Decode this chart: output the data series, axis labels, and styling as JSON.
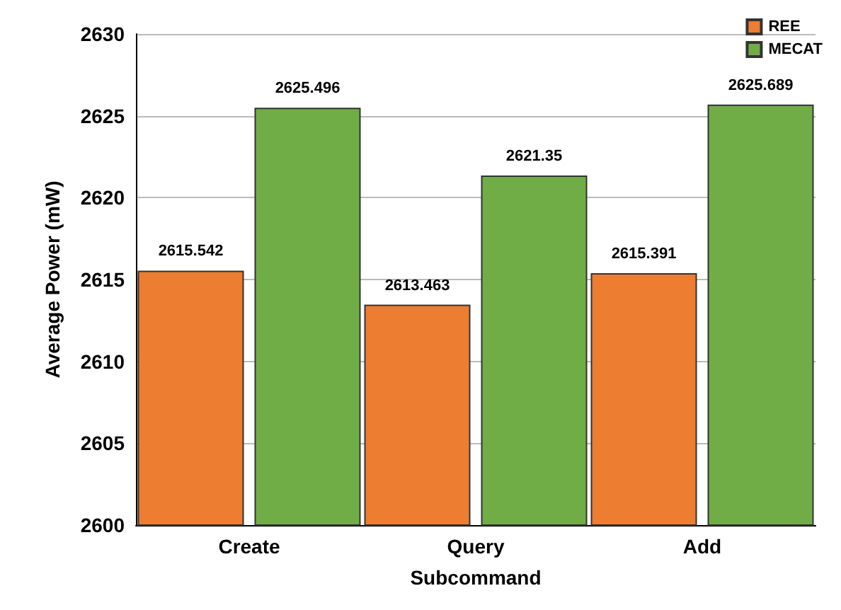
{
  "chart_data": {
    "type": "bar",
    "xlabel": "Subcommand",
    "ylabel": "Average Power (mW)",
    "categories": [
      "Create",
      "Query",
      "Add"
    ],
    "series": [
      {
        "name": "REE",
        "color": "#ed7d31",
        "values": [
          2615.542,
          2613.463,
          2615.391
        ]
      },
      {
        "name": "MECAT",
        "color": "#70ad47",
        "values": [
          2625.496,
          2621.35,
          2625.689
        ]
      }
    ],
    "ylim": [
      2600,
      2630
    ],
    "yticks": [
      2600,
      2605,
      2610,
      2615,
      2620,
      2625,
      2630
    ],
    "grid": "y",
    "legend": "top right",
    "data_labels": true
  }
}
